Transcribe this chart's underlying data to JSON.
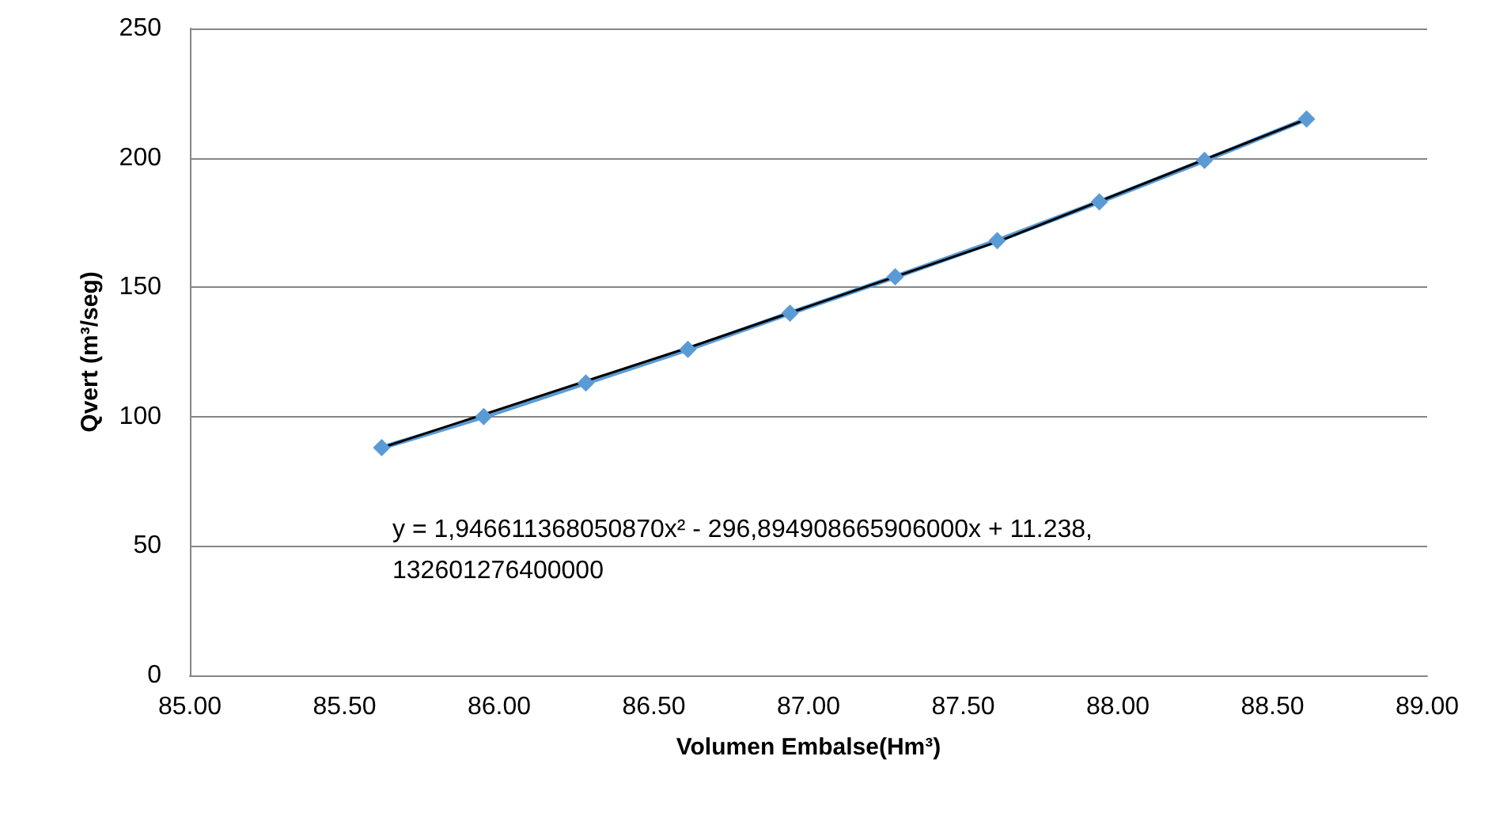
{
  "chart_data": {
    "type": "line",
    "xlabel": "Volumen Embalse(Hm³)",
    "ylabel": "Qvert (m³/seg)",
    "x": [
      85.62,
      85.95,
      86.28,
      86.61,
      86.94,
      87.28,
      87.61,
      87.94,
      88.28,
      88.61
    ],
    "series": [
      {
        "color": "#5b9bd5",
        "marker": "diamond",
        "values": [
          88,
          100,
          113,
          126,
          140,
          154,
          168,
          183,
          199,
          215
        ]
      },
      {
        "color": "#000000",
        "marker": "none",
        "x": [
          85.62,
          86.62,
          87.62,
          88.61
        ],
        "values": [
          88,
          127,
          168,
          215
        ]
      }
    ],
    "xlim": [
      85,
      89
    ],
    "xticks": [
      {
        "value": 85,
        "label": "85.00"
      },
      {
        "value": 85.5,
        "label": "85.50"
      },
      {
        "value": 86,
        "label": "86.00"
      },
      {
        "value": 86.5,
        "label": "86.50"
      },
      {
        "value": 87,
        "label": "87.00"
      },
      {
        "value": 87.5,
        "label": "87.50"
      },
      {
        "value": 88,
        "label": "88.00"
      },
      {
        "value": 88.5,
        "label": "88.50"
      },
      {
        "value": 89,
        "label": "89.00"
      }
    ],
    "ylim": [
      0,
      250
    ],
    "yticks": [
      0,
      50,
      100,
      150,
      200,
      250
    ],
    "grid": "y",
    "annotations": [
      "y = 1,946611368050870x² - 296,894908665906000x + 11.238,132601276400000"
    ]
  }
}
